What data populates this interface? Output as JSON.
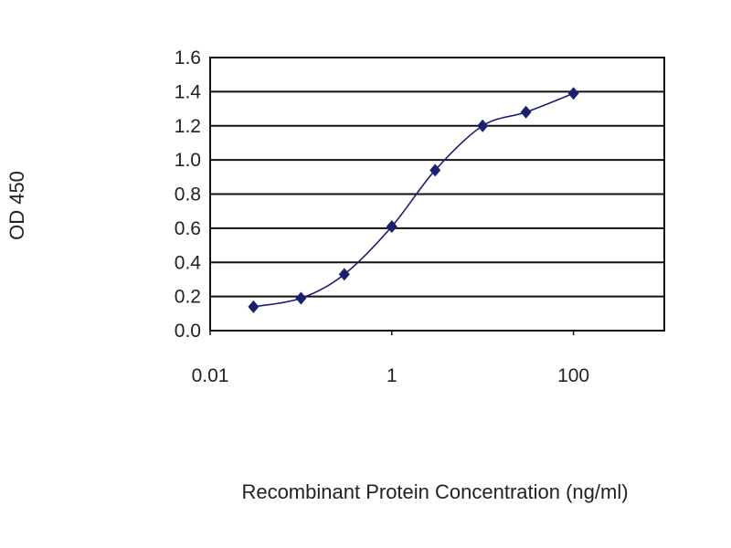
{
  "chart_data": {
    "type": "line",
    "title": "",
    "xlabel": "Recombinant Protein Concentration (ng/ml)",
    "ylabel": "OD 450",
    "xscale": "log",
    "xlim": [
      0.01,
      1000
    ],
    "ylim": [
      0,
      1.6
    ],
    "x_ticks": [
      0.01,
      1,
      100
    ],
    "x_tick_labels": [
      "0.01",
      "1",
      "100"
    ],
    "y_ticks": [
      0,
      0.2,
      0.4,
      0.6,
      0.8,
      1.0,
      1.2,
      1.4,
      1.6
    ],
    "y_tick_labels": [
      "0.0",
      "0.2",
      "0.4",
      "0.6",
      "0.8",
      "1.0",
      "1.2",
      "1.4",
      "1.6"
    ],
    "grid": "horizontal",
    "legend": "none",
    "series": [
      {
        "x": [
          0.03,
          0.1,
          0.3,
          1,
          3,
          10,
          30,
          100
        ],
        "y": [
          0.14,
          0.19,
          0.33,
          0.61,
          0.94,
          1.2,
          1.28,
          1.39
        ],
        "color": "#1a1f6e",
        "marker": "diamond"
      }
    ]
  }
}
